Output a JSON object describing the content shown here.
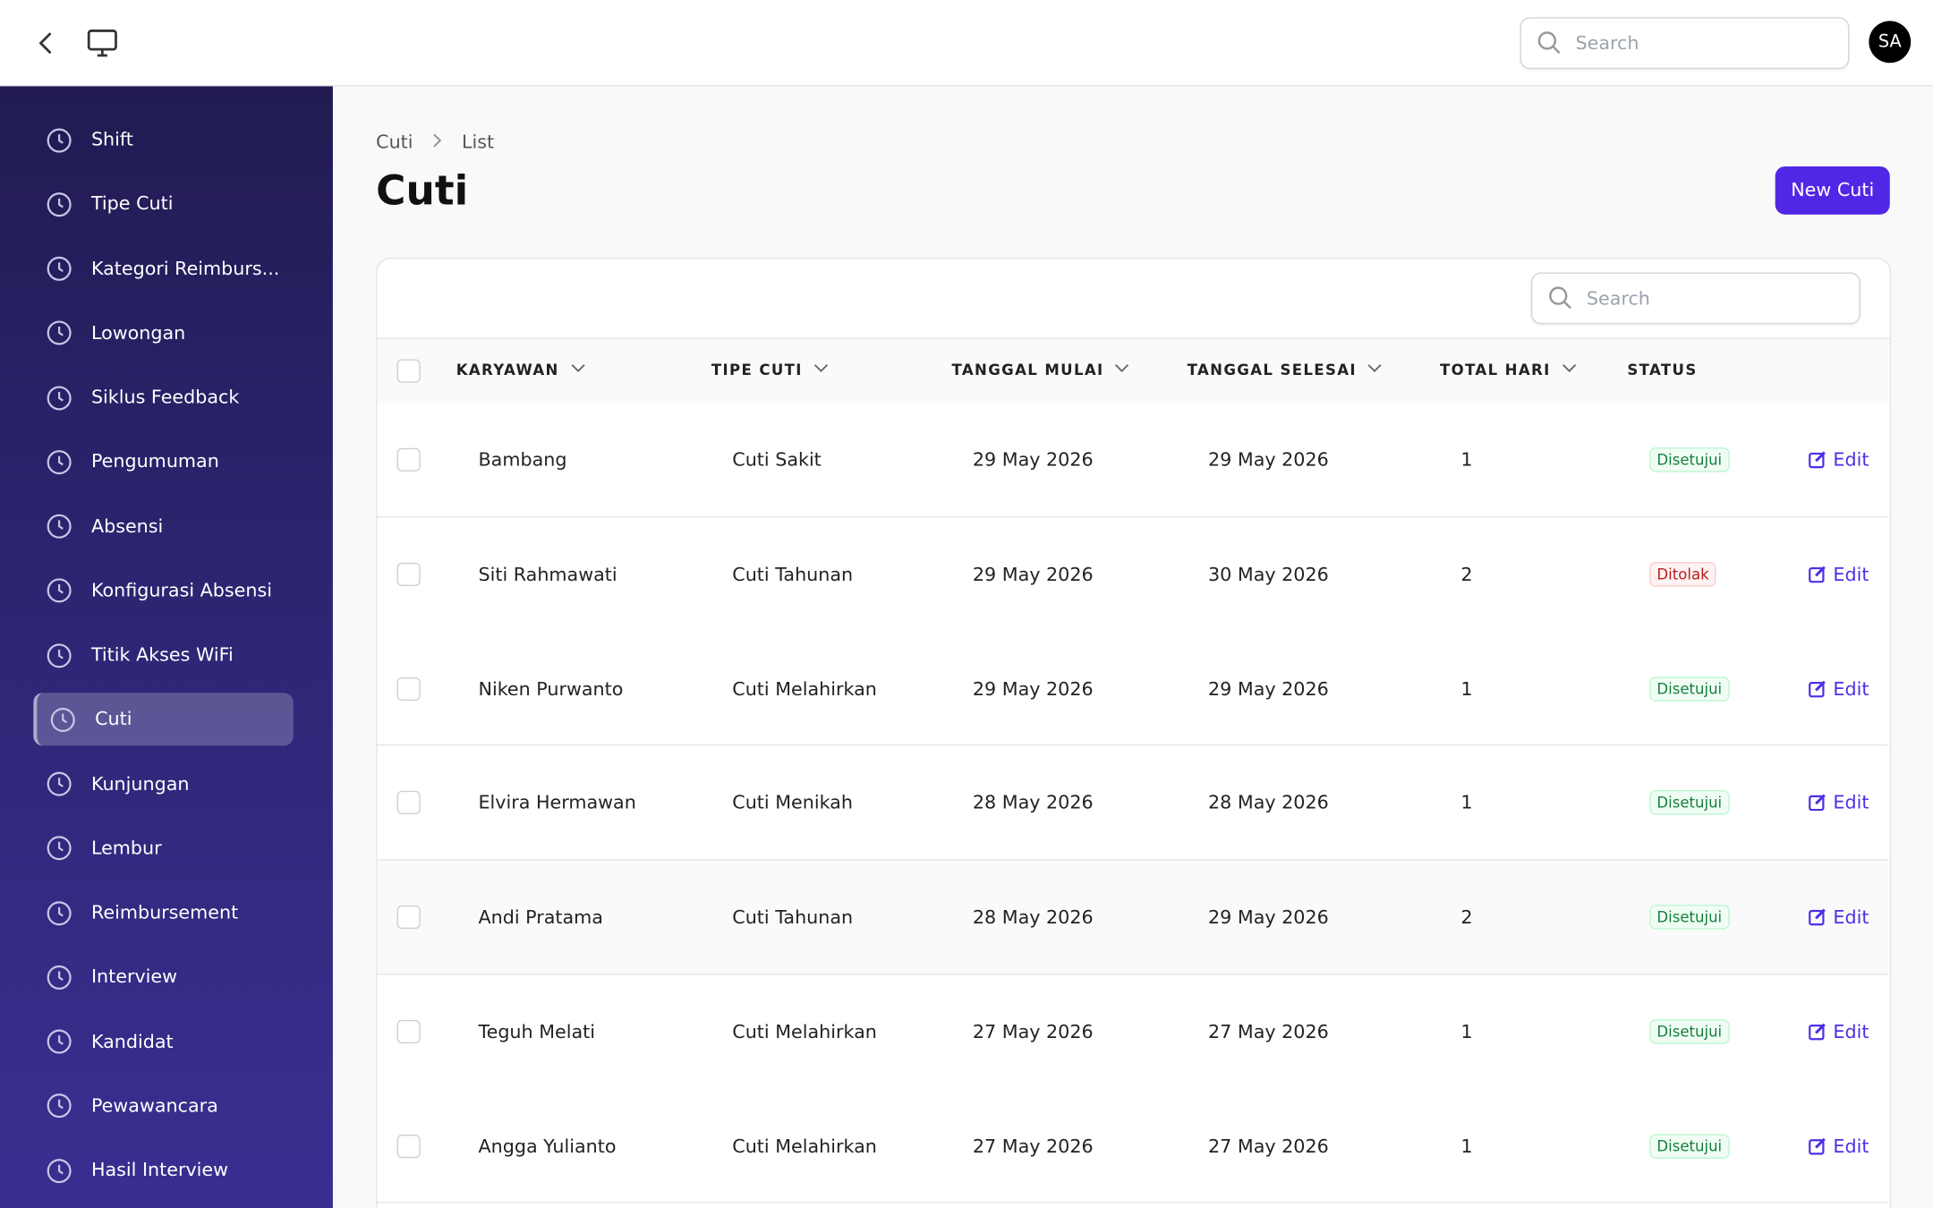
{
  "topbar": {
    "search_placeholder": "Search",
    "avatar": "SA"
  },
  "sidebar": {
    "items": [
      "Shift",
      "Tipe Cuti",
      "Kategori Reimburs...",
      "Lowongan",
      "Siklus Feedback",
      "Pengumuman",
      "Absensi",
      "Konfigurasi Absensi",
      "Titik Akses WiFi",
      "Cuti",
      "Kunjungan",
      "Lembur",
      "Reimbursement",
      "Interview",
      "Kandidat",
      "Pewawancara",
      "Hasil Interview"
    ],
    "active": "Cuti"
  },
  "breadcrumb": [
    "Cuti",
    "List"
  ],
  "header": {
    "title": "Cuti",
    "button": "New Cuti"
  },
  "table": {
    "search_placeholder": "Search",
    "columns": [
      "KARYAWAN",
      "TIPE CUTI",
      "TANGGAL MULAI",
      "TANGGAL SELESAI",
      "TOTAL HARI",
      "STATUS"
    ],
    "edit_label": "Edit",
    "rows": [
      [
        "Bambang",
        "Cuti Sakit",
        "29 May 2026",
        "29 May 2026",
        1,
        "Disetujui"
      ],
      [
        "Siti Rahmawati",
        "Cuti Tahunan",
        "29 May 2026",
        "30 May 2026",
        2,
        "Ditolak"
      ],
      [
        "Niken Purwanto",
        "Cuti Melahirkan",
        "29 May 2026",
        "29 May 2026",
        1,
        "Disetujui"
      ],
      [
        "Elvira Hermawan",
        "Cuti Menikah",
        "28 May 2026",
        "28 May 2026",
        1,
        "Disetujui"
      ],
      [
        "Andi Pratama",
        "Cuti Tahunan",
        "28 May 2026",
        "29 May 2026",
        2,
        "Disetujui"
      ],
      [
        "Teguh Melati",
        "Cuti Melahirkan",
        "27 May 2026",
        "27 May 2026",
        1,
        "Disetujui"
      ],
      [
        "Angga Yulianto",
        "Cuti Melahirkan",
        "27 May 2026",
        "27 May 2026",
        1,
        "Disetujui"
      ]
    ]
  }
}
